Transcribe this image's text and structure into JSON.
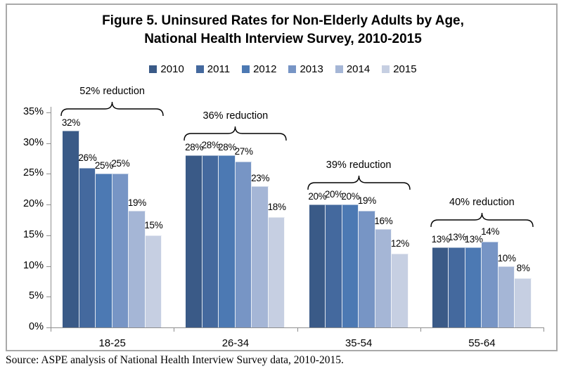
{
  "source": "Source: ASPE analysis of National Health Interview Survey data, 2010-2015.",
  "colors": {
    "bars": [
      "#3A5A87",
      "#44699E",
      "#4C79B3",
      "#7795C5",
      "#A5B6D6",
      "#C6CFE2"
    ],
    "axis": "#8E8E8E",
    "chart_border": "#A9A9A9",
    "annotation": "#000000",
    "text": "#000000"
  },
  "chart_data": {
    "type": "bar",
    "title": "Figure 5. Uninsured Rates for Non-Elderly Adults by Age, National Health Interview Survey, 2010-2015",
    "title_lines": [
      "Figure 5. Uninsured Rates for Non-Elderly Adults by Age,",
      "National Health Interview Survey, 2010-2015"
    ],
    "categories": [
      "18-25",
      "26-34",
      "35-54",
      "55-64"
    ],
    "series": [
      {
        "name": "2010",
        "values": [
          32,
          28,
          20,
          13
        ]
      },
      {
        "name": "2011",
        "values": [
          26,
          28,
          20,
          13
        ]
      },
      {
        "name": "2012",
        "values": [
          25,
          28,
          20,
          13
        ]
      },
      {
        "name": "2013",
        "values": [
          25,
          27,
          19,
          14
        ]
      },
      {
        "name": "2014",
        "values": [
          19,
          23,
          16,
          10
        ]
      },
      {
        "name": "2015",
        "values": [
          15,
          18,
          12,
          8
        ]
      }
    ],
    "annotations": [
      {
        "category": "18-25",
        "text": "52% reduction"
      },
      {
        "category": "26-34",
        "text": "36% reduction"
      },
      {
        "category": "35-54",
        "text": "39% reduction"
      },
      {
        "category": "55-64",
        "text": "40% reduction"
      }
    ],
    "data_label_suffix": "%",
    "xlabel": "",
    "ylabel": "",
    "ylim": [
      0,
      35
    ],
    "ytick_step": 5,
    "ytick_labels": [
      "0%",
      "5%",
      "10%",
      "15%",
      "20%",
      "25%",
      "30%",
      "35%"
    ],
    "grid": false,
    "legend_position": "top"
  }
}
